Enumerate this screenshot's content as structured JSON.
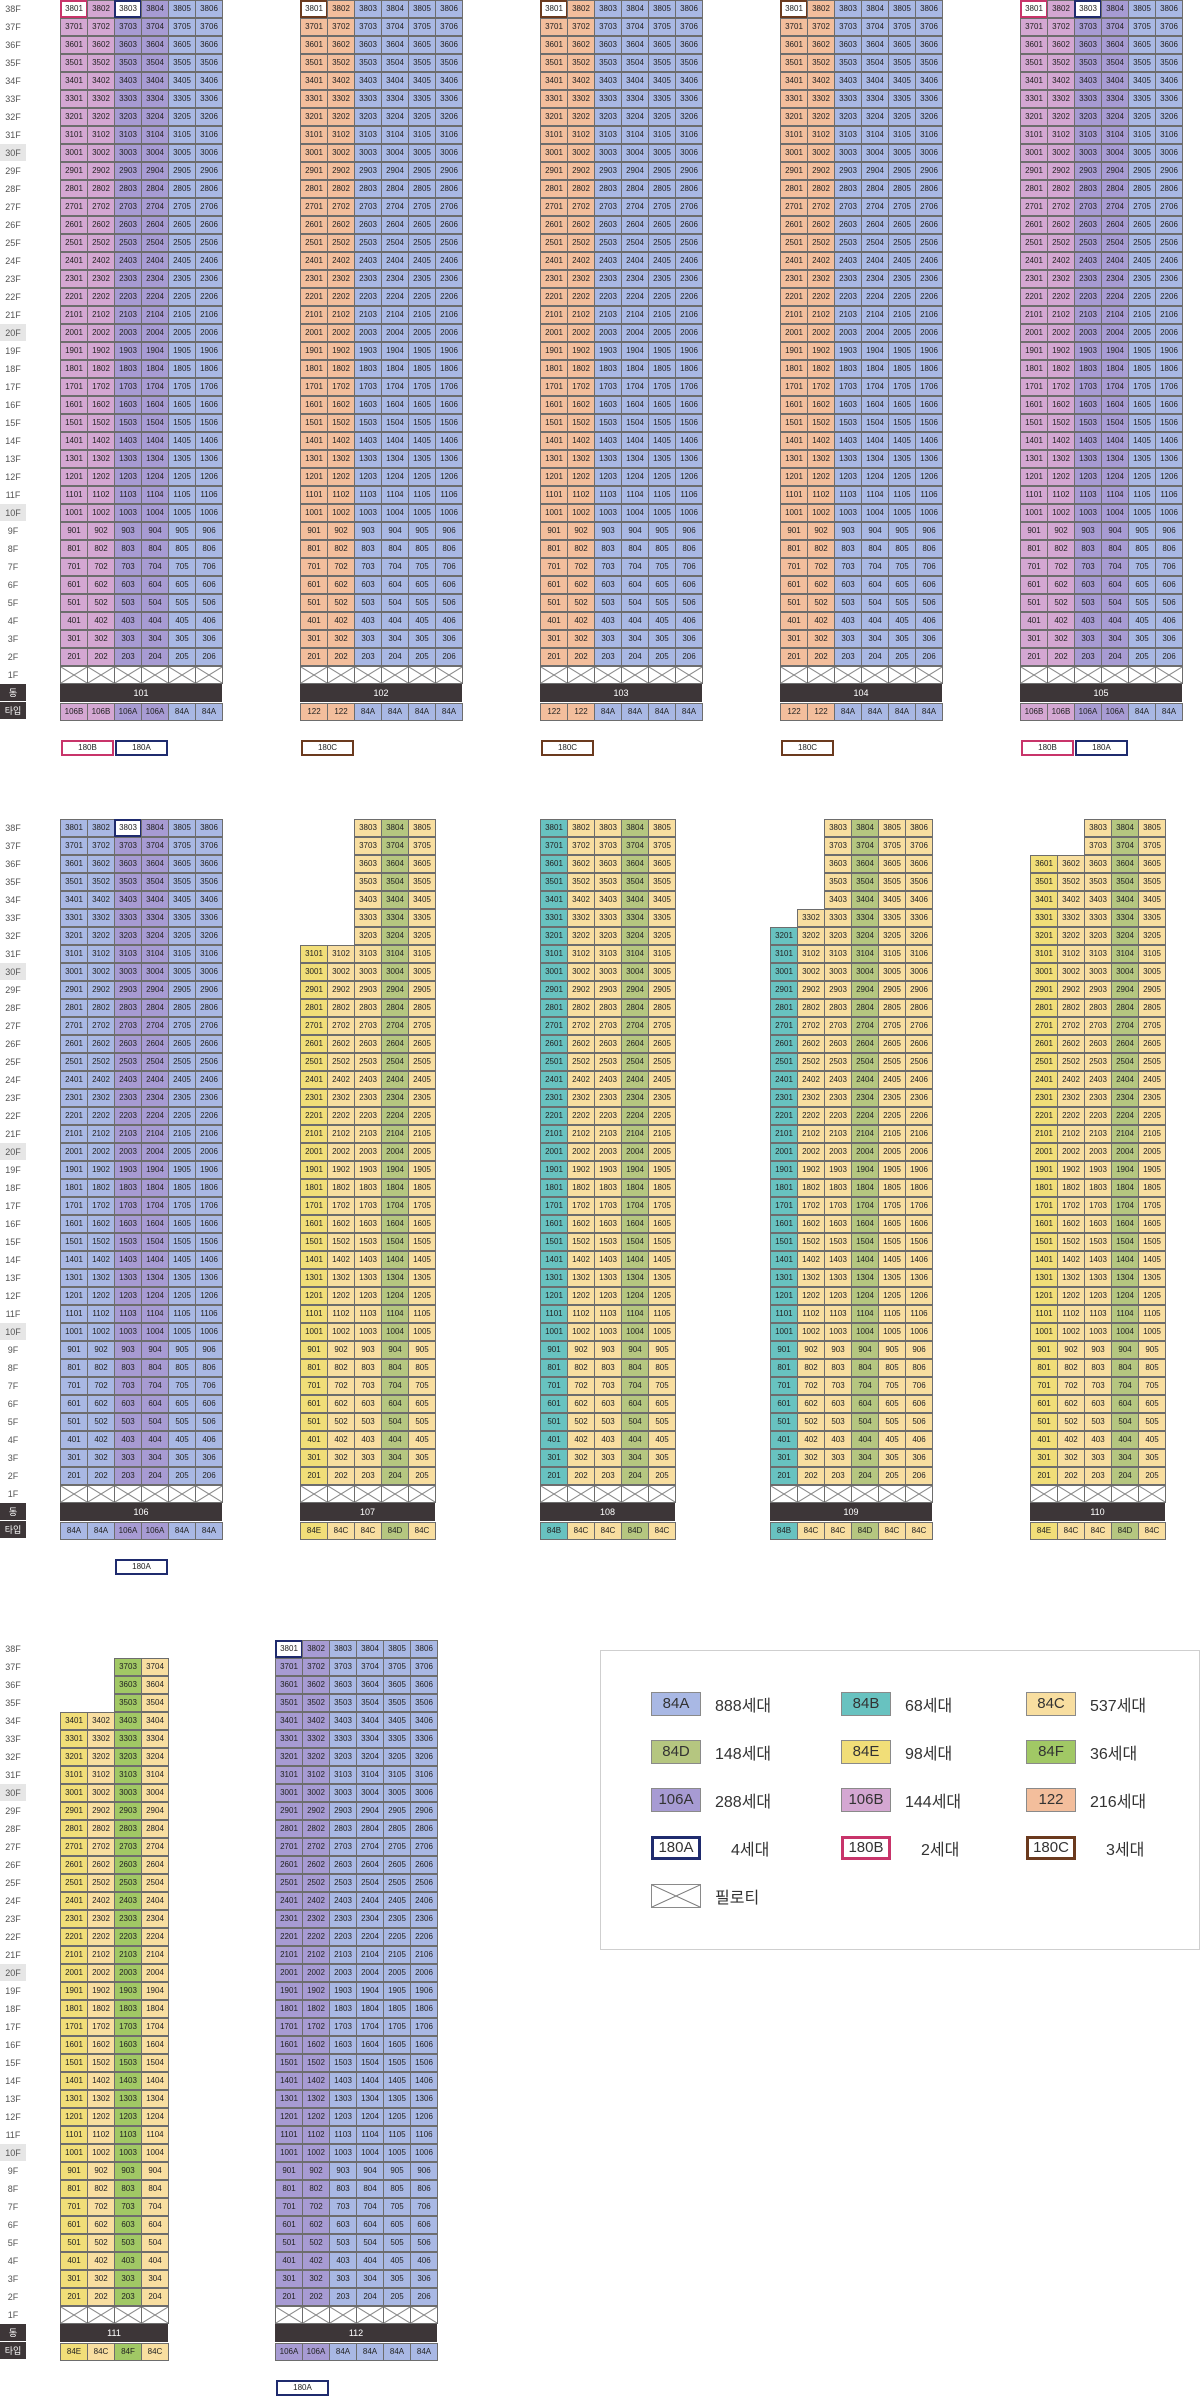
{
  "floor_axis": {
    "floors": [
      "38F",
      "37F",
      "36F",
      "35F",
      "34F",
      "33F",
      "32F",
      "31F",
      "30F",
      "29F",
      "28F",
      "27F",
      "26F",
      "25F",
      "24F",
      "23F",
      "22F",
      "21F",
      "20F",
      "19F",
      "18F",
      "17F",
      "16F",
      "15F",
      "14F",
      "13F",
      "12F",
      "11F",
      "10F",
      "9F",
      "8F",
      "7F",
      "6F",
      "5F",
      "4F",
      "3F",
      "2F",
      "1F"
    ],
    "highlight": [
      "30F",
      "20F",
      "10F"
    ],
    "dong_label": "동",
    "type_label": "타입"
  },
  "colors": {
    "84A": "#a9b8e4",
    "84B": "#68c2c0",
    "84C": "#f8dea0",
    "84D": "#b5c680",
    "84E": "#f1de78",
    "84F": "#a1c865",
    "106A": "#a79bd3",
    "106B": "#d4a7d2",
    "122": "#f3be9c",
    "180A": "#1f2b6e",
    "180B": "#c8346a",
    "180C": "#6b3a1e"
  },
  "buildings": [
    {
      "name": "101",
      "cols": [
        "106B",
        "106B",
        "106A",
        "106A",
        "84A",
        "84A"
      ],
      "top": [
        38,
        38,
        38,
        38,
        38,
        38
      ],
      "start": 1,
      "specials": {
        "3801": "180B",
        "3803": "180A"
      },
      "sub": [
        {
          "label": "180B",
          "type": "180B",
          "col": 0,
          "span": 2
        },
        {
          "label": "180A",
          "type": "180A",
          "col": 2,
          "span": 2
        }
      ]
    },
    {
      "name": "102",
      "cols": [
        "122",
        "122",
        "84A",
        "84A",
        "84A",
        "84A"
      ],
      "top": [
        38,
        38,
        38,
        38,
        38,
        38
      ],
      "start": 1,
      "specials": {
        "3801": "180C"
      },
      "sub": [
        {
          "label": "180C",
          "type": "180C",
          "col": 0,
          "span": 2
        }
      ]
    },
    {
      "name": "103",
      "cols": [
        "122",
        "122",
        "84A",
        "84A",
        "84A",
        "84A"
      ],
      "top": [
        38,
        38,
        38,
        38,
        38,
        38
      ],
      "start": 1,
      "specials": {
        "3801": "180C"
      },
      "sub": [
        {
          "label": "180C",
          "type": "180C",
          "col": 0,
          "span": 2
        }
      ]
    },
    {
      "name": "104",
      "cols": [
        "122",
        "122",
        "84A",
        "84A",
        "84A",
        "84A"
      ],
      "top": [
        38,
        38,
        38,
        38,
        38,
        38
      ],
      "start": 1,
      "specials": {
        "3801": "180C"
      },
      "sub": [
        {
          "label": "180C",
          "type": "180C",
          "col": 0,
          "span": 2
        }
      ]
    },
    {
      "name": "105",
      "cols": [
        "106B",
        "106B",
        "106A",
        "106A",
        "84A",
        "84A"
      ],
      "top": [
        38,
        38,
        38,
        38,
        38,
        38
      ],
      "start": 1,
      "specials": {
        "3801": "180B",
        "3803": "180A"
      },
      "sub": [
        {
          "label": "180B",
          "type": "180B",
          "col": 0,
          "span": 2
        },
        {
          "label": "180A",
          "type": "180A",
          "col": 2,
          "span": 2
        }
      ]
    },
    {
      "name": "106",
      "cols": [
        "84A",
        "84A",
        "106A",
        "106A",
        "84A",
        "84A"
      ],
      "top": [
        38,
        38,
        38,
        38,
        38,
        38
      ],
      "start": 1,
      "specials": {
        "3803": "180A"
      },
      "sub": [
        {
          "label": "180A",
          "type": "180A",
          "col": 2,
          "span": 2
        }
      ]
    },
    {
      "name": "107",
      "cols": [
        "84E",
        "84C",
        "84C",
        "84D",
        "84C"
      ],
      "top": [
        31,
        31,
        38,
        38,
        38
      ],
      "start": 1,
      "specials": {},
      "sub": []
    },
    {
      "name": "108",
      "cols": [
        "84B",
        "84C",
        "84C",
        "84D",
        "84C"
      ],
      "top": [
        38,
        38,
        38,
        38,
        38
      ],
      "start": 1,
      "specials": {},
      "sub": []
    },
    {
      "name": "109",
      "cols": [
        "84B",
        "84C",
        "84C",
        "84D",
        "84C",
        "84C"
      ],
      "top": [
        32,
        33,
        38,
        38,
        38,
        38
      ],
      "start": 1,
      "specials": {},
      "sub": []
    },
    {
      "name": "110",
      "cols": [
        "84E",
        "84C",
        "84C",
        "84D",
        "84C"
      ],
      "top": [
        36,
        36,
        38,
        38,
        38
      ],
      "start": 1,
      "specials": {},
      "sub": []
    },
    {
      "name": "111",
      "cols": [
        "84E",
        "84C",
        "84F",
        "84C"
      ],
      "top": [
        34,
        34,
        37,
        37
      ],
      "start": 1,
      "specials": {},
      "sub": []
    },
    {
      "name": "112",
      "cols": [
        "106A",
        "106A",
        "84A",
        "84A",
        "84A",
        "84A"
      ],
      "top": [
        38,
        38,
        38,
        38,
        38,
        38
      ],
      "start": 1,
      "specials": {
        "3801": "180A"
      },
      "sub": [
        {
          "label": "180A",
          "type": "180A",
          "col": 0,
          "span": 2
        }
      ]
    }
  ],
  "legend": [
    {
      "type": "84A",
      "count": "888세대"
    },
    {
      "type": "84B",
      "count": "68세대"
    },
    {
      "type": "84C",
      "count": "537세대"
    },
    {
      "type": "84D",
      "count": "148세대"
    },
    {
      "type": "84E",
      "count": "98세대"
    },
    {
      "type": "84F",
      "count": "36세대"
    },
    {
      "type": "106A",
      "count": "288세대"
    },
    {
      "type": "106B",
      "count": "144세대"
    },
    {
      "type": "122",
      "count": "216세대"
    },
    {
      "type": "180A",
      "count": "4세대"
    },
    {
      "type": "180B",
      "count": "2세대"
    },
    {
      "type": "180C",
      "count": "3세대"
    },
    {
      "type": "pilotis",
      "label": "필로티"
    }
  ]
}
